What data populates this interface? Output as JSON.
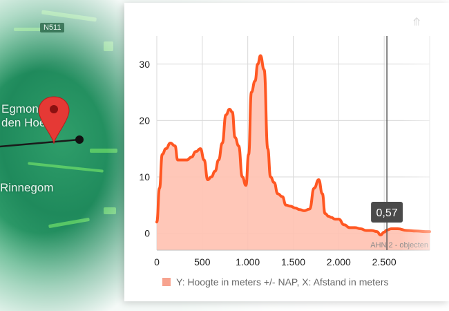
{
  "map": {
    "places": [
      "Egmond aan\nden Hoef",
      "Rinnegom"
    ],
    "badge": "N511"
  },
  "profile": {
    "tooltip_value": "0,57",
    "source_label": "AHN 2 - objecten",
    "legend": "Y: Hoogte in meters +/- NAP, X: Afstand in meters"
  },
  "colors": {
    "line": "#ff5722",
    "fill": "#ffc1b0",
    "marker": "#e53935",
    "tooltip_bg": "#4a4a4a"
  },
  "chart_data": {
    "type": "area",
    "xlim": [
      0,
      3000
    ],
    "ylim": [
      -3,
      35
    ],
    "xticks": [
      0,
      500,
      1000,
      1500,
      2000,
      2500
    ],
    "xtick_labels": [
      "0",
      "500",
      "1.000",
      "1.500",
      "2.000",
      "2.500"
    ],
    "yticks": [
      0,
      10,
      20,
      30
    ],
    "ytick_labels": [
      "0",
      "10",
      "20",
      "30"
    ],
    "grid": true,
    "cursor_x": 2530,
    "series": [
      {
        "x": [
          0,
          30,
          60,
          100,
          150,
          200,
          230,
          280,
          330,
          380,
          430,
          480,
          520,
          560,
          600,
          640,
          680,
          720,
          760,
          800,
          830,
          860,
          900,
          940,
          980,
          1010,
          1040,
          1080,
          1110,
          1140,
          1180,
          1220,
          1250,
          1290,
          1330,
          1380,
          1420,
          1470,
          1520,
          1570,
          1620,
          1680,
          1730,
          1780,
          1820,
          1850,
          1890,
          1920,
          1960,
          2000,
          2060,
          2120,
          2180,
          2240,
          2300,
          2360,
          2420,
          2460,
          2500,
          2530,
          2580,
          2650,
          2750,
          2850,
          2950,
          3000
        ],
        "y": [
          2,
          8,
          14,
          15,
          16,
          15.5,
          13,
          13,
          13,
          13.5,
          14.5,
          15,
          13,
          9.5,
          10,
          11,
          13,
          16,
          21,
          22,
          21.5,
          17,
          15.5,
          10,
          8.5,
          14,
          25,
          27,
          30,
          31.5,
          29,
          15,
          10,
          9,
          7,
          6.5,
          5,
          4.8,
          4.5,
          4.2,
          4,
          4.3,
          8,
          9.5,
          7,
          3.5,
          3,
          2.8,
          2.5,
          2.5,
          1.5,
          1.0,
          1.0,
          0.8,
          0.5,
          0.5,
          0.3,
          -0.3,
          0.2,
          0.57,
          0.8,
          0.8,
          0.5,
          0.4,
          0.3,
          0.3
        ]
      }
    ]
  }
}
